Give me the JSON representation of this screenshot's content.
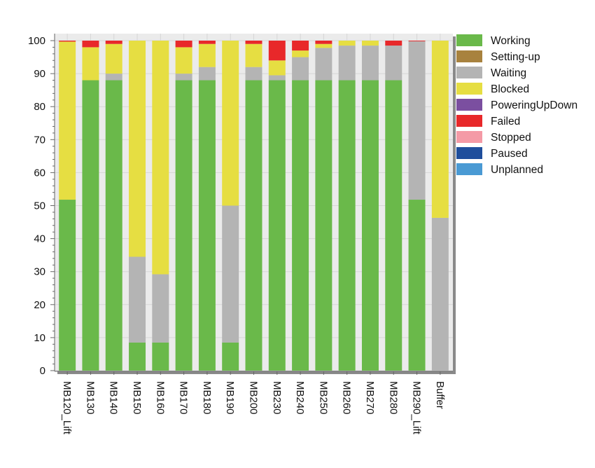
{
  "chart_data": {
    "type": "bar",
    "stacked": true,
    "title": "",
    "xlabel": "",
    "ylabel": "",
    "ylim": [
      0,
      100
    ],
    "yticks": [
      0,
      10,
      20,
      30,
      40,
      50,
      60,
      70,
      80,
      90,
      100
    ],
    "grid": true,
    "legend_position": "right",
    "categories": [
      "MB120_Lift",
      "MB130",
      "MB140",
      "MB150",
      "MB160",
      "MB170",
      "MB180",
      "MB190",
      "MB200",
      "MB230",
      "MB240",
      "MB250",
      "MB260",
      "MB270",
      "MB280",
      "MB290_Lift",
      "Buffer"
    ],
    "series": [
      {
        "name": "Working",
        "color": "#6ab94a",
        "values": [
          51.8,
          88,
          88,
          8.5,
          8.5,
          88,
          88,
          8.5,
          88,
          88,
          88,
          88,
          88,
          88,
          88,
          51.8,
          0
        ]
      },
      {
        "name": "Setting-up",
        "color": "#a8823e",
        "values": [
          0,
          0,
          0,
          0,
          0,
          0,
          0,
          0,
          0,
          0,
          0,
          0,
          0,
          0,
          0,
          0,
          0
        ]
      },
      {
        "name": "Waiting",
        "color": "#b4b4b4",
        "values": [
          0,
          0,
          2,
          26,
          20.7,
          2,
          4,
          41.5,
          4,
          1.5,
          7,
          9.8,
          10.5,
          10.5,
          10.5,
          48,
          46.3
        ]
      },
      {
        "name": "Blocked",
        "color": "#e6de42",
        "values": [
          47.9,
          10,
          9,
          65.5,
          70.8,
          8,
          7,
          50,
          7,
          4.5,
          2,
          1.2,
          1.5,
          1.5,
          0,
          0,
          53.7
        ]
      },
      {
        "name": "PoweringUpDown",
        "color": "#7b4fa0",
        "values": [
          0,
          0,
          0,
          0,
          0,
          0,
          0,
          0,
          0,
          0,
          0,
          0,
          0,
          0,
          0,
          0,
          0
        ]
      },
      {
        "name": "Failed",
        "color": "#e8282a",
        "values": [
          0.3,
          2,
          1,
          0,
          0,
          2,
          1,
          0,
          1,
          6,
          3,
          1,
          0,
          0,
          1.5,
          0.2,
          0
        ]
      },
      {
        "name": "Stopped",
        "color": "#f49aa6",
        "values": [
          0,
          0,
          0,
          0,
          0,
          0,
          0,
          0,
          0,
          0,
          0,
          0,
          0,
          0,
          0,
          0,
          0
        ]
      },
      {
        "name": "Paused",
        "color": "#1f4e9c",
        "values": [
          0,
          0,
          0,
          0,
          0,
          0,
          0,
          0,
          0,
          0,
          0,
          0,
          0,
          0,
          0,
          0,
          0
        ]
      },
      {
        "name": "Unplanned",
        "color": "#4a9ad4",
        "values": [
          0,
          0,
          0,
          0,
          0,
          0,
          0,
          0,
          0,
          0,
          0,
          0,
          0,
          0,
          0,
          0,
          0
        ]
      }
    ],
    "colors": {
      "plot_background": "#ebebeb",
      "grid": "#d6d6d6",
      "frame_shadow": "#8a8a8a",
      "axis": "#666666"
    }
  }
}
